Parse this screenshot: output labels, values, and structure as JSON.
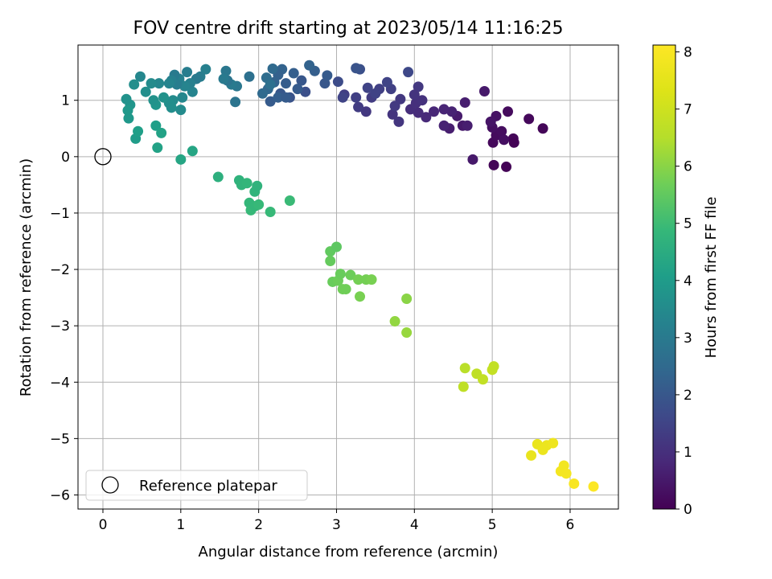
{
  "chart_data": {
    "type": "scatter",
    "title": "FOV centre drift starting at 2023/05/14 11:16:25",
    "xlabel": "Angular distance from reference (arcmin)",
    "ylabel": "Rotation from reference (arcmin)",
    "xlim": [
      -0.32,
      6.62
    ],
    "ylim": [
      -6.25,
      1.98
    ],
    "xticks": [
      0,
      1,
      2,
      3,
      4,
      5,
      6
    ],
    "yticks": [
      -6,
      -5,
      -4,
      -3,
      -2,
      -1,
      0,
      1
    ],
    "grid": true,
    "legend": {
      "placement": "lower-left",
      "entries": [
        "Reference platepar"
      ]
    },
    "reference_point": {
      "name": "Reference platepar",
      "x": 0,
      "y": 0
    },
    "colorbar": {
      "label": "Hours from first FF file",
      "colormap": "viridis",
      "range": [
        0,
        8.12
      ],
      "ticks": [
        0,
        1,
        2,
        3,
        4,
        5,
        6,
        7,
        8
      ]
    },
    "series": [
      {
        "color_value": "hours",
        "points": [
          [
            5.65,
            0.5,
            0.1
          ],
          [
            5.2,
            0.8,
            0.2
          ],
          [
            5.27,
            0.32,
            0.1
          ],
          [
            5.28,
            0.25,
            0.05
          ],
          [
            5.18,
            -0.18,
            0.05
          ],
          [
            5.02,
            -0.15,
            0.1
          ],
          [
            5.01,
            0.25,
            0.15
          ],
          [
            5.05,
            0.38,
            0.2
          ],
          [
            5.12,
            0.45,
            0.25
          ],
          [
            5.15,
            0.3,
            0.3
          ],
          [
            5.05,
            0.72,
            0.35
          ],
          [
            5.0,
            0.52,
            0.3
          ],
          [
            4.98,
            0.62,
            0.4
          ],
          [
            5.47,
            0.67,
            0.15
          ],
          [
            4.75,
            -0.05,
            0.5
          ],
          [
            4.62,
            0.55,
            0.5
          ],
          [
            4.68,
            0.55,
            0.6
          ],
          [
            4.55,
            0.72,
            0.55
          ],
          [
            4.45,
            0.5,
            0.6
          ],
          [
            4.65,
            0.96,
            0.6
          ],
          [
            4.48,
            0.8,
            0.7
          ],
          [
            4.38,
            0.84,
            0.75
          ],
          [
            4.25,
            0.8,
            0.8
          ],
          [
            4.38,
            0.55,
            0.7
          ],
          [
            4.9,
            1.16,
            0.5
          ],
          [
            4.15,
            0.7,
            0.85
          ],
          [
            4.05,
            0.78,
            0.9
          ],
          [
            3.95,
            0.84,
            0.95
          ],
          [
            4.02,
            0.95,
            1.0
          ],
          [
            4.1,
            1.0,
            1.05
          ],
          [
            4.05,
            1.24,
            1.2
          ],
          [
            4.0,
            1.1,
            1.1
          ],
          [
            3.92,
            1.5,
            1.6
          ],
          [
            3.82,
            1.02,
            1.2
          ],
          [
            3.72,
            0.75,
            1.1
          ],
          [
            3.8,
            0.62,
            1.15
          ],
          [
            3.75,
            0.9,
            1.25
          ],
          [
            3.7,
            1.2,
            1.4
          ],
          [
            3.65,
            1.32,
            1.5
          ],
          [
            3.55,
            1.2,
            1.4
          ],
          [
            3.45,
            1.05,
            1.3
          ],
          [
            3.38,
            0.8,
            1.2
          ],
          [
            3.28,
            0.88,
            1.3
          ],
          [
            3.4,
            1.22,
            1.5
          ],
          [
            3.5,
            1.12,
            1.45
          ],
          [
            3.25,
            1.05,
            1.4
          ],
          [
            3.1,
            1.1,
            1.35
          ],
          [
            3.08,
            1.05,
            1.5
          ],
          [
            3.3,
            1.55,
            1.8
          ],
          [
            3.25,
            1.57,
            1.9
          ],
          [
            3.02,
            1.33,
            1.7
          ],
          [
            2.85,
            1.3,
            2.0
          ],
          [
            2.88,
            1.44,
            2.1
          ],
          [
            2.72,
            1.52,
            2.2
          ],
          [
            2.65,
            1.62,
            2.3
          ],
          [
            2.6,
            1.15,
            1.8
          ],
          [
            2.55,
            1.35,
            2.0
          ],
          [
            2.5,
            1.2,
            2.1
          ],
          [
            2.45,
            1.48,
            2.2
          ],
          [
            2.4,
            1.05,
            1.9
          ],
          [
            2.35,
            1.3,
            2.15
          ],
          [
            2.3,
            1.55,
            2.3
          ],
          [
            2.28,
            1.12,
            2.0
          ],
          [
            2.25,
            1.45,
            2.25
          ],
          [
            2.2,
            1.32,
            2.3
          ],
          [
            2.18,
            1.56,
            2.5
          ],
          [
            2.15,
            0.98,
            2.1
          ],
          [
            2.12,
            1.2,
            2.4
          ],
          [
            2.1,
            1.4,
            2.6
          ],
          [
            2.05,
            1.12,
            2.5
          ],
          [
            2.15,
            1.28,
            2.7
          ],
          [
            2.25,
            1.05,
            2.2
          ],
          [
            1.88,
            1.42,
            2.7
          ],
          [
            2.35,
            1.05,
            2.1
          ],
          [
            1.7,
            0.97,
            2.8
          ],
          [
            1.72,
            1.25,
            2.9
          ],
          [
            1.65,
            1.28,
            3.0
          ],
          [
            1.6,
            1.35,
            2.8
          ],
          [
            1.58,
            1.52,
            2.9
          ],
          [
            1.55,
            1.38,
            3.0
          ],
          [
            1.32,
            1.55,
            3.2
          ],
          [
            1.25,
            1.42,
            3.1
          ],
          [
            1.2,
            1.38,
            3.0
          ],
          [
            1.15,
            1.15,
            3.3
          ],
          [
            1.12,
            1.3,
            3.2
          ],
          [
            1.08,
            1.5,
            3.1
          ],
          [
            1.05,
            1.25,
            3.3
          ],
          [
            1.02,
            1.05,
            3.4
          ],
          [
            1.0,
            0.83,
            3.5
          ],
          [
            0.98,
            1.38,
            3.2
          ],
          [
            0.95,
            1.28,
            3.1
          ],
          [
            0.92,
            1.45,
            3.0
          ],
          [
            0.88,
            1.35,
            3.2
          ],
          [
            0.85,
            1.3,
            3.3
          ],
          [
            0.9,
            1.0,
            3.5
          ],
          [
            0.85,
            0.95,
            3.6
          ],
          [
            0.88,
            0.87,
            3.6
          ],
          [
            0.78,
            1.05,
            3.7
          ],
          [
            0.72,
            1.3,
            3.4
          ],
          [
            0.68,
            0.92,
            3.8
          ],
          [
            0.65,
            1.0,
            3.7
          ],
          [
            0.62,
            1.3,
            3.5
          ],
          [
            0.55,
            1.15,
            3.6
          ],
          [
            0.48,
            1.42,
            3.4
          ],
          [
            0.4,
            1.28,
            3.6
          ],
          [
            0.35,
            0.92,
            3.8
          ],
          [
            0.32,
            0.82,
            3.9
          ],
          [
            0.3,
            1.02,
            3.7
          ],
          [
            0.33,
            0.68,
            3.9
          ],
          [
            0.42,
            0.32,
            4.0
          ],
          [
            0.45,
            0.45,
            4.1
          ],
          [
            0.68,
            0.55,
            4.1
          ],
          [
            0.75,
            0.42,
            4.2
          ],
          [
            0.7,
            0.16,
            4.2
          ],
          [
            1.0,
            -0.05,
            4.3
          ],
          [
            1.15,
            0.1,
            4.3
          ],
          [
            1.48,
            -0.36,
            4.6
          ],
          [
            1.75,
            -0.42,
            4.7
          ],
          [
            1.78,
            -0.5,
            4.75
          ],
          [
            1.85,
            -0.47,
            4.8
          ],
          [
            1.88,
            -0.82,
            4.85
          ],
          [
            1.9,
            -0.95,
            4.9
          ],
          [
            1.95,
            -0.88,
            4.85
          ],
          [
            2.0,
            -0.85,
            4.9
          ],
          [
            1.95,
            -0.62,
            4.75
          ],
          [
            1.98,
            -0.52,
            4.7
          ],
          [
            2.15,
            -0.98,
            4.9
          ],
          [
            2.4,
            -0.78,
            4.95
          ],
          [
            2.92,
            -1.68,
            5.5
          ],
          [
            3.0,
            -1.6,
            5.45
          ],
          [
            2.92,
            -1.85,
            5.55
          ],
          [
            2.95,
            -2.22,
            5.6
          ],
          [
            3.02,
            -2.2,
            5.65
          ],
          [
            3.05,
            -2.08,
            5.6
          ],
          [
            3.08,
            -2.35,
            5.7
          ],
          [
            3.12,
            -2.35,
            5.7
          ],
          [
            3.18,
            -2.1,
            5.65
          ],
          [
            3.28,
            -2.18,
            5.75
          ],
          [
            3.3,
            -2.48,
            5.8
          ],
          [
            3.38,
            -2.18,
            5.75
          ],
          [
            3.45,
            -2.18,
            5.8
          ],
          [
            3.75,
            -2.92,
            6.1
          ],
          [
            3.9,
            -2.52,
            6.0
          ],
          [
            3.9,
            -3.12,
            6.15
          ],
          [
            4.65,
            -3.75,
            6.6
          ],
          [
            4.8,
            -3.85,
            6.7
          ],
          [
            4.88,
            -3.95,
            6.75
          ],
          [
            5.0,
            -3.78,
            6.8
          ],
          [
            5.02,
            -3.72,
            6.75
          ],
          [
            4.63,
            -4.08,
            6.7
          ],
          [
            5.5,
            -5.3,
            7.6
          ],
          [
            5.58,
            -5.1,
            7.65
          ],
          [
            5.65,
            -5.2,
            7.7
          ],
          [
            5.7,
            -5.12,
            7.7
          ],
          [
            5.78,
            -5.08,
            7.75
          ],
          [
            5.88,
            -5.58,
            7.9
          ],
          [
            5.92,
            -5.48,
            7.85
          ],
          [
            5.95,
            -5.62,
            7.9
          ],
          [
            6.05,
            -5.8,
            8.0
          ],
          [
            6.3,
            -5.85,
            8.1
          ]
        ]
      }
    ]
  }
}
